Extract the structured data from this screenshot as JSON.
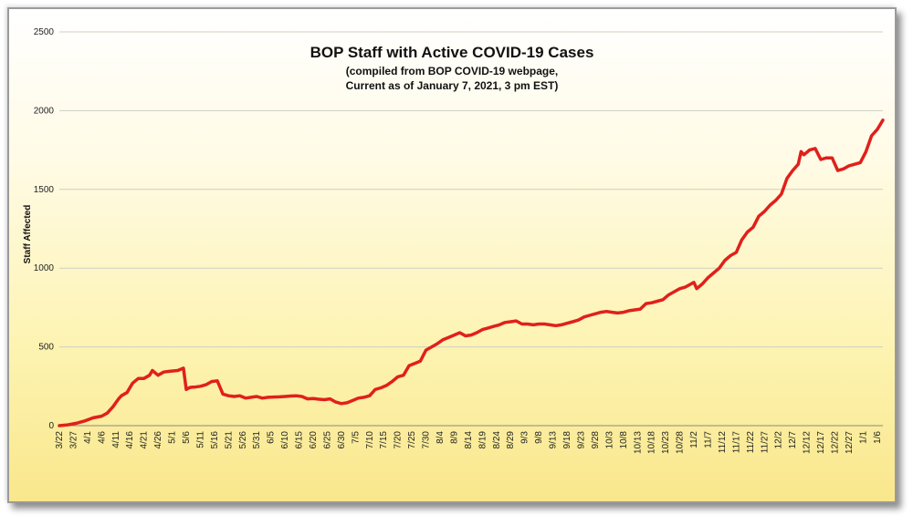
{
  "chart_data": {
    "type": "line",
    "title": "BOP Staff with Active COVID-19 Cases",
    "subtitle_lines": [
      "(compiled from BOP COVID-19 webpage,",
      "Current as of January 7, 2021, 3 pm EST)"
    ],
    "xlabel": "",
    "ylabel": "Staff Affected",
    "ylim": [
      0,
      2500
    ],
    "yticks": [
      0,
      500,
      1000,
      1500,
      2000,
      2500
    ],
    "grid": "horizontal",
    "x_tick_labels": [
      "3/22",
      "3/27",
      "4/1",
      "4/6",
      "4/11",
      "4/16",
      "4/21",
      "4/26",
      "5/1",
      "5/6",
      "5/11",
      "5/16",
      "5/21",
      "5/26",
      "5/31",
      "6/5",
      "6/10",
      "6/15",
      "6/20",
      "6/25",
      "6/30",
      "7/5",
      "7/10",
      "7/15",
      "7/20",
      "7/25",
      "7/30",
      "8/4",
      "8/9",
      "8/14",
      "8/19",
      "8/24",
      "8/29",
      "9/3",
      "9/8",
      "9/13",
      "9/18",
      "9/23",
      "9/28",
      "10/3",
      "10/8",
      "10/13",
      "10/18",
      "10/23",
      "10/28",
      "11/2",
      "11/7",
      "11/12",
      "11/17",
      "11/22",
      "11/27",
      "12/2",
      "12/7",
      "12/12",
      "12/17",
      "12/22",
      "12/27",
      "1/1",
      "1/6"
    ],
    "line_color": "#e0201b",
    "series": [
      {
        "x": [
          0,
          3,
          6,
          9,
          12,
          15,
          17,
          19,
          21,
          22,
          24,
          26,
          28,
          30,
          32,
          33,
          35,
          37,
          39,
          42,
          44,
          45,
          46,
          47,
          48,
          50,
          52,
          54,
          56,
          58,
          60,
          62,
          64,
          66,
          68,
          70,
          72,
          74,
          76,
          78,
          80,
          82,
          84,
          86,
          88,
          90,
          92,
          94,
          96,
          98,
          100,
          102,
          104,
          106,
          108,
          110,
          112,
          114,
          116,
          118,
          120,
          122,
          124,
          126,
          128,
          130,
          132,
          134,
          136,
          138,
          140,
          142,
          144,
          146,
          148,
          150,
          152,
          154,
          156,
          158,
          160,
          162,
          164,
          166,
          168,
          170,
          172,
          174,
          176,
          178,
          180,
          182,
          184,
          186,
          188,
          190,
          192,
          194,
          196,
          198,
          200,
          202,
          204,
          206,
          208,
          210,
          212,
          214,
          216,
          218,
          220,
          222,
          224,
          225,
          226,
          228,
          230,
          232,
          234,
          236,
          238,
          240,
          242,
          244,
          246,
          248,
          250,
          252,
          254,
          256,
          258,
          260,
          262,
          263,
          264,
          266,
          268,
          270,
          272,
          274,
          276,
          278,
          280,
          282,
          284,
          286,
          288,
          290,
          292
        ],
        "values": [
          0,
          5,
          15,
          30,
          50,
          60,
          80,
          120,
          170,
          190,
          210,
          270,
          300,
          300,
          320,
          350,
          320,
          340,
          345,
          350,
          365,
          230,
          240,
          245,
          245,
          250,
          260,
          280,
          285,
          200,
          190,
          185,
          190,
          175,
          180,
          185,
          175,
          180,
          182,
          183,
          185,
          188,
          190,
          185,
          170,
          172,
          168,
          165,
          170,
          150,
          140,
          145,
          160,
          175,
          180,
          190,
          230,
          240,
          255,
          280,
          310,
          320,
          380,
          395,
          410,
          480,
          500,
          520,
          545,
          560,
          575,
          590,
          570,
          575,
          590,
          610,
          620,
          630,
          640,
          655,
          660,
          665,
          645,
          645,
          640,
          645,
          645,
          640,
          635,
          640,
          650,
          660,
          670,
          690,
          700,
          710,
          720,
          725,
          720,
          715,
          720,
          730,
          735,
          740,
          775,
          780,
          790,
          800,
          830,
          850,
          870,
          880,
          900,
          910,
          870,
          900,
          940,
          970,
          1000,
          1050,
          1080,
          1100,
          1180,
          1230,
          1260,
          1330,
          1360,
          1400,
          1430,
          1470,
          1570,
          1620,
          1660,
          1740,
          1720,
          1750,
          1760,
          1690,
          1700,
          1700,
          1620,
          1630,
          1650,
          1660,
          1670,
          1740,
          1840,
          1880,
          1940
        ]
      }
    ]
  }
}
